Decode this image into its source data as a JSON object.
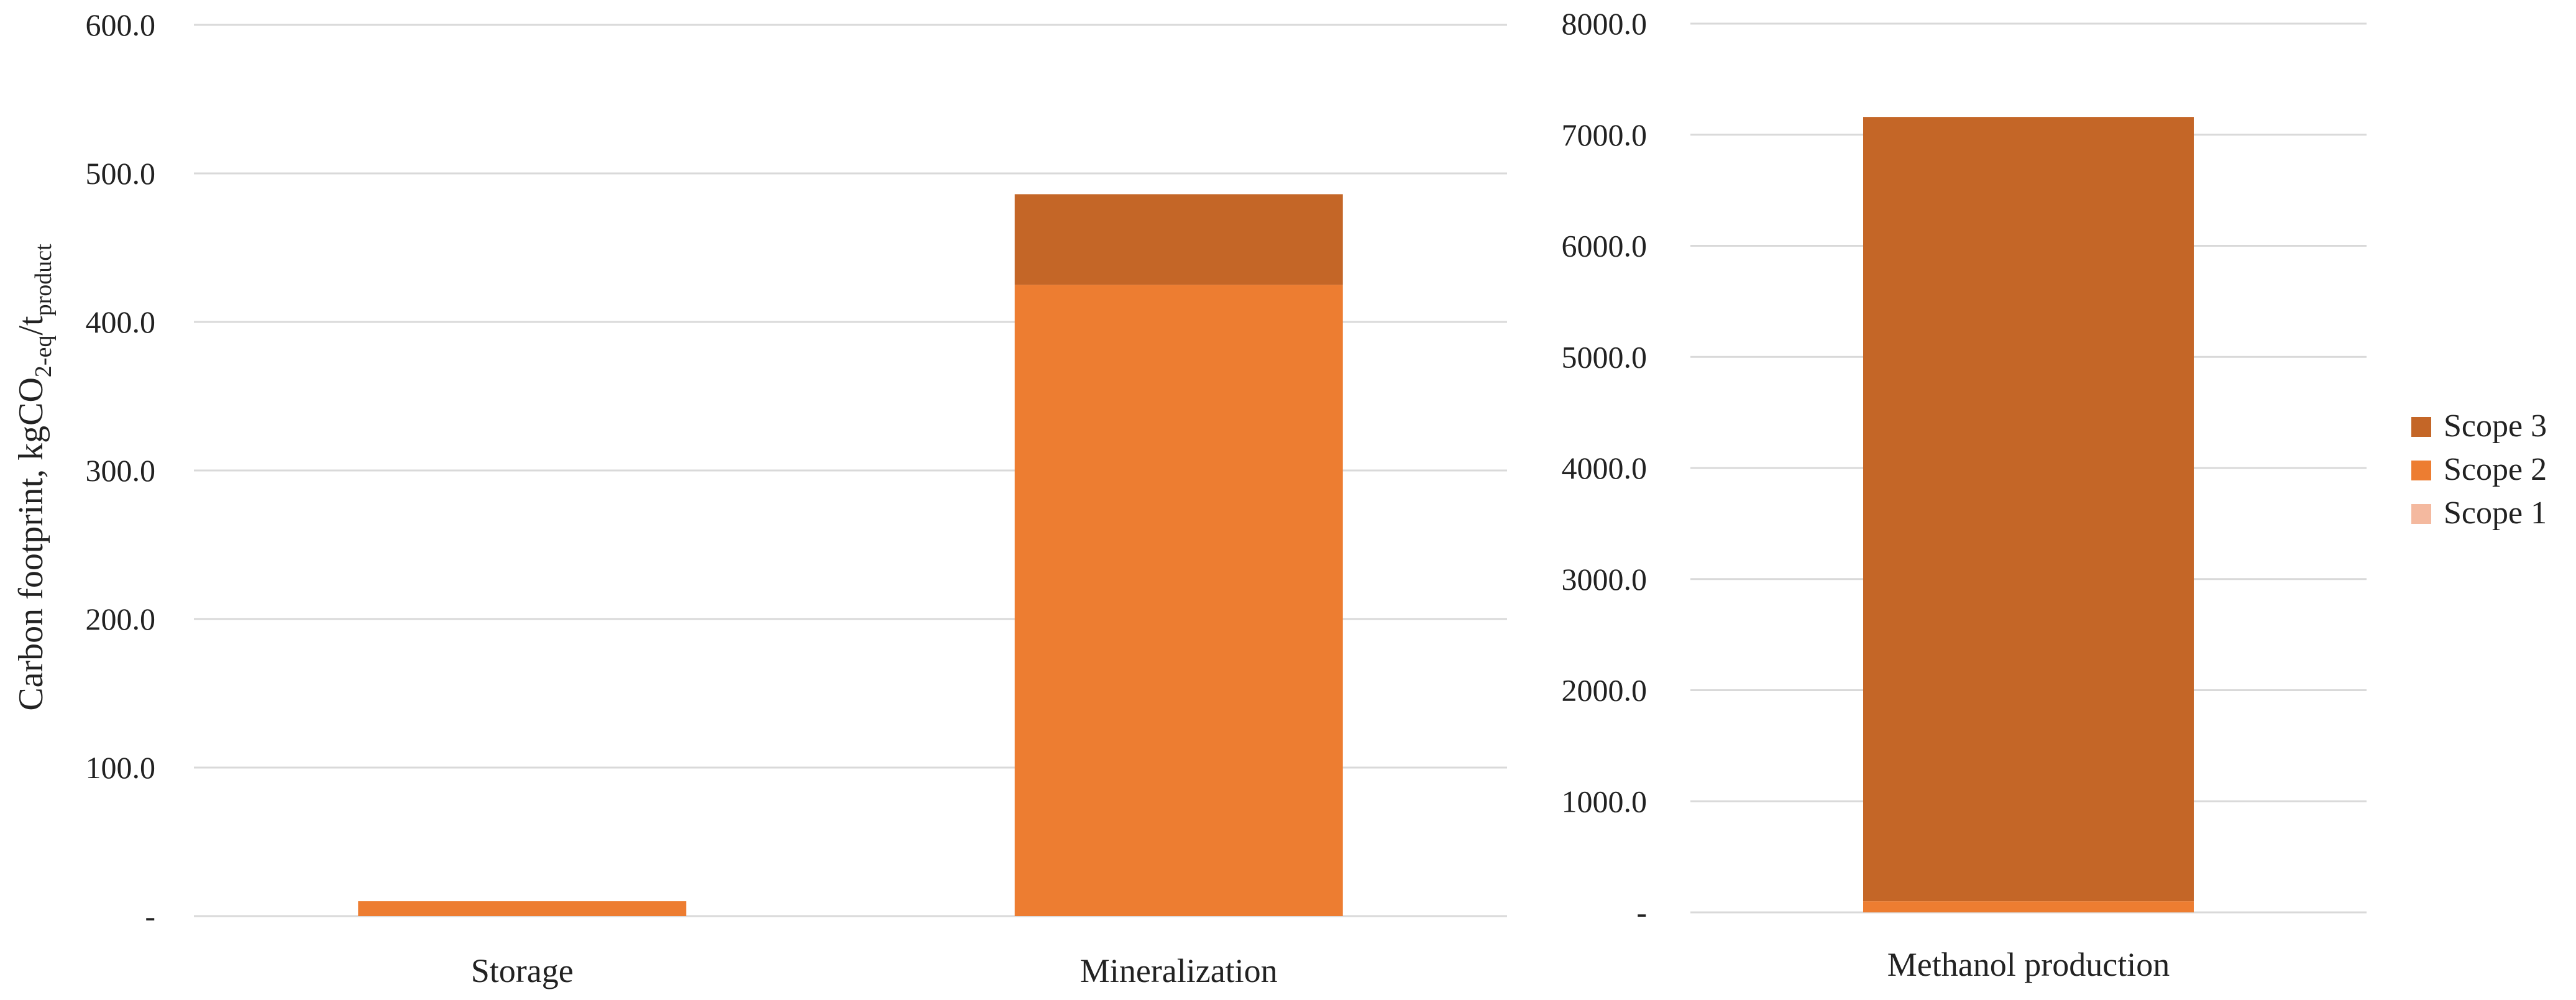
{
  "chart_data": [
    {
      "type": "bar",
      "stacked": true,
      "categories": [
        "Storage",
        "Mineralization"
      ],
      "ylabel": "Carbon footprint, kgCO2-eq/tproduct",
      "ylim": [
        0,
        600
      ],
      "yticks": [
        "-",
        "100.0",
        "200.0",
        "300.0",
        "400.0",
        "500.0",
        "600.0"
      ],
      "grid": true,
      "series": [
        {
          "name": "Scope 1",
          "values": [
            0,
            0
          ]
        },
        {
          "name": "Scope 2",
          "values": [
            10,
            425
          ]
        },
        {
          "name": "Scope 3",
          "values": [
            0,
            61
          ]
        }
      ]
    },
    {
      "type": "bar",
      "stacked": true,
      "categories": [
        "Methanol production"
      ],
      "ylim": [
        0,
        8000
      ],
      "yticks": [
        "-",
        "1000.0",
        "2000.0",
        "3000.0",
        "4000.0",
        "5000.0",
        "6000.0",
        "7000.0",
        "8000.0"
      ],
      "grid": true,
      "series": [
        {
          "name": "Scope 1",
          "values": [
            0
          ]
        },
        {
          "name": "Scope 2",
          "values": [
            100
          ]
        },
        {
          "name": "Scope 3",
          "values": [
            7060
          ]
        }
      ]
    }
  ],
  "ylabel_parts": {
    "main": "Carbon footprint, kgCO",
    "sub1": "2-eq",
    "mid": "/t",
    "sub2": "product"
  },
  "legend": {
    "position": "right",
    "items": [
      {
        "label": "Scope 3",
        "color": "#c46627"
      },
      {
        "label": "Scope 2",
        "color": "#ed7d31"
      },
      {
        "label": "Scope 1",
        "color": "#f4b99f"
      }
    ]
  },
  "colors": {
    "Scope 1": "#f4b99f",
    "Scope 2": "#ed7d31",
    "Scope 3": "#c46627"
  }
}
